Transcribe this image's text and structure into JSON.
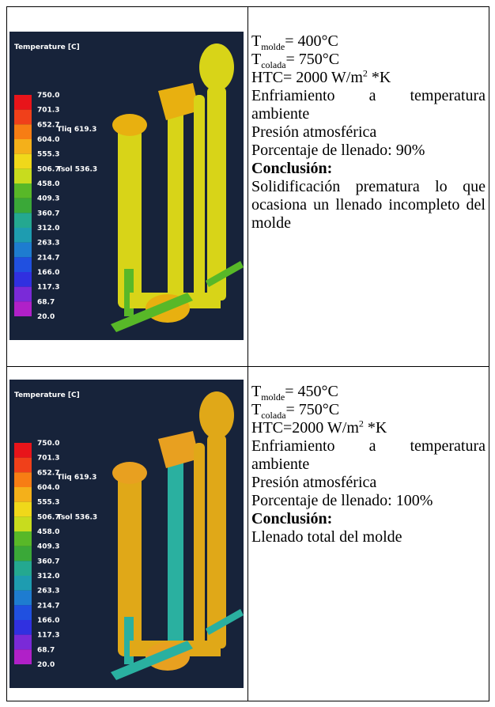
{
  "table": {
    "rows": [
      {
        "image": {
          "title": "Temperature  [C]",
          "legend": [
            "750.0",
            "701.3",
            "652.7",
            "604.0",
            "555.3",
            "506.7",
            "458.0",
            "409.3",
            "360.7",
            "312.0",
            "263.3",
            "214.7",
            "166.0",
            "117.3",
            "68.7",
            "20.0"
          ],
          "tliq": "Tliq  619.3",
          "tsol": "Tsol  536.3"
        },
        "text": {
          "t_molde": {
            "base": "T",
            "sub": "molde",
            "value": "= 400°C"
          },
          "t_colada": {
            "base": "T",
            "sub": "colada",
            "value": "= 750°C"
          },
          "htc": {
            "text": "HTC= 2000 W/m",
            "sup": "2",
            "unit": " *K"
          },
          "paragraphs": [
            "Enfriamiento a temperatura ambiente",
            "Presión atmosférica",
            "Porcentaje de llenado: 90%"
          ],
          "conclusion_label": "Conclusión:",
          "conclusion": "Solidificación prematura lo que ocasiona un llenado incompleto del molde"
        }
      },
      {
        "image": {
          "title": "Temperature  [C]",
          "legend": [
            "750.0",
            "701.3",
            "652.7",
            "604.0",
            "555.3",
            "506.7",
            "458.0",
            "409.3",
            "360.7",
            "312.0",
            "263.3",
            "214.7",
            "166.0",
            "117.3",
            "68.7",
            "20.0"
          ],
          "tliq": "Tliq  619.3",
          "tsol": "Tsol  536.3"
        },
        "text": {
          "t_molde": {
            "base": "T",
            "sub": "molde",
            "value": "= 450°C"
          },
          "t_colada": {
            "base": "T",
            "sub": "colada",
            "value": "= 750°C"
          },
          "htc": {
            "text": "HTC=2000 W/m",
            "sup": "2",
            "unit": " *K"
          },
          "paragraphs": [
            "Enfriamiento a temperatura ambiente",
            "Presión atmosférica",
            "Porcentaje de llenado: 100%"
          ],
          "conclusion_label": "Conclusión:",
          "conclusion": "Llenado total del molde"
        }
      }
    ]
  }
}
